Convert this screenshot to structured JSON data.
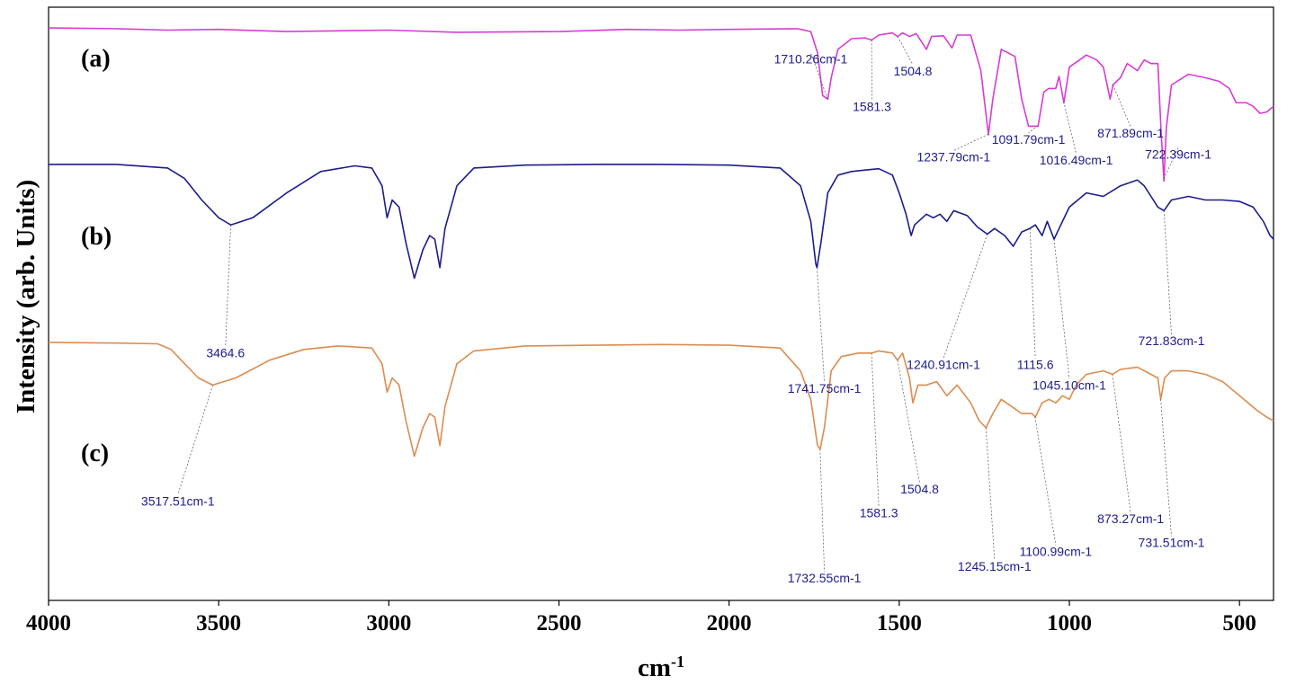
{
  "chart_data": {
    "type": "line",
    "title": "",
    "xlabel": "cm",
    "xlabel_superscript": "-1",
    "ylabel": "Intensity (arb. Units)",
    "xlim": [
      4000,
      400
    ],
    "xticks": [
      4000,
      3500,
      3000,
      2500,
      2000,
      1500,
      1000,
      500
    ],
    "grid": false,
    "series": [
      {
        "name": "(a)",
        "color": "#d63cd6",
        "offset": 0.965,
        "scale": 0.2,
        "points": [
          [
            4000,
            0
          ],
          [
            3800,
            -0.01
          ],
          [
            3650,
            -0.03
          ],
          [
            3500,
            -0.02
          ],
          [
            3300,
            -0.05
          ],
          [
            3150,
            -0.04
          ],
          [
            3000,
            -0.03
          ],
          [
            2800,
            -0.06
          ],
          [
            2500,
            -0.05
          ],
          [
            2300,
            -0.02
          ],
          [
            2150,
            -0.03
          ],
          [
            2000,
            -0.02
          ],
          [
            1800,
            -0.01
          ],
          [
            1760,
            -0.05
          ],
          [
            1740,
            -0.35
          ],
          [
            1725,
            -0.95
          ],
          [
            1710,
            -1.0
          ],
          [
            1700,
            -0.7
          ],
          [
            1680,
            -0.3
          ],
          [
            1640,
            -0.15
          ],
          [
            1600,
            -0.14
          ],
          [
            1581,
            -0.17
          ],
          [
            1560,
            -0.1
          ],
          [
            1520,
            -0.07
          ],
          [
            1505,
            -0.12
          ],
          [
            1490,
            -0.07
          ],
          [
            1470,
            -0.12
          ],
          [
            1450,
            -0.08
          ],
          [
            1420,
            -0.3
          ],
          [
            1405,
            -0.12
          ],
          [
            1370,
            -0.11
          ],
          [
            1345,
            -0.28
          ],
          [
            1330,
            -0.1
          ],
          [
            1290,
            -0.1
          ],
          [
            1260,
            -0.6
          ],
          [
            1238,
            -1.5
          ],
          [
            1225,
            -1.0
          ],
          [
            1200,
            -0.3
          ],
          [
            1180,
            -0.35
          ],
          [
            1160,
            -0.4
          ],
          [
            1140,
            -1.0
          ],
          [
            1120,
            -1.38
          ],
          [
            1092,
            -1.38
          ],
          [
            1075,
            -0.9
          ],
          [
            1060,
            -0.85
          ],
          [
            1040,
            -0.85
          ],
          [
            1030,
            -0.68
          ],
          [
            1016,
            -1.05
          ],
          [
            1000,
            -0.55
          ],
          [
            950,
            -0.38
          ],
          [
            920,
            -0.45
          ],
          [
            900,
            -0.55
          ],
          [
            880,
            -1.0
          ],
          [
            872,
            -0.8
          ],
          [
            850,
            -0.7
          ],
          [
            830,
            -0.5
          ],
          [
            800,
            -0.6
          ],
          [
            780,
            -0.45
          ],
          [
            760,
            -0.5
          ],
          [
            740,
            -0.5
          ],
          [
            730,
            -1.5
          ],
          [
            722,
            -2.15
          ],
          [
            715,
            -1.4
          ],
          [
            700,
            -0.8
          ],
          [
            650,
            -0.65
          ],
          [
            600,
            -0.7
          ],
          [
            560,
            -0.75
          ],
          [
            530,
            -0.85
          ],
          [
            510,
            -1.05
          ],
          [
            480,
            -1.05
          ],
          [
            460,
            -1.1
          ],
          [
            440,
            -1.2
          ],
          [
            420,
            -1.18
          ],
          [
            400,
            -1.1
          ]
        ]
      },
      {
        "name": "(b)",
        "color": "#1c1c8c",
        "offset": 0.735,
        "scale": 0.2,
        "points": [
          [
            4000,
            0
          ],
          [
            3800,
            0
          ],
          [
            3650,
            -0.05
          ],
          [
            3600,
            -0.2
          ],
          [
            3550,
            -0.5
          ],
          [
            3500,
            -0.75
          ],
          [
            3464.6,
            -0.85
          ],
          [
            3400,
            -0.75
          ],
          [
            3300,
            -0.4
          ],
          [
            3200,
            -0.1
          ],
          [
            3100,
            -0.02
          ],
          [
            3050,
            -0.05
          ],
          [
            3020,
            -0.3
          ],
          [
            3005,
            -0.75
          ],
          [
            2990,
            -0.5
          ],
          [
            2970,
            -0.6
          ],
          [
            2950,
            -1.1
          ],
          [
            2925,
            -1.6
          ],
          [
            2900,
            -1.2
          ],
          [
            2880,
            -1.0
          ],
          [
            2865,
            -1.05
          ],
          [
            2850,
            -1.45
          ],
          [
            2835,
            -0.9
          ],
          [
            2800,
            -0.3
          ],
          [
            2750,
            -0.05
          ],
          [
            2600,
            -0.01
          ],
          [
            2400,
            0.0
          ],
          [
            2200,
            0.0
          ],
          [
            2000,
            -0.01
          ],
          [
            1850,
            -0.05
          ],
          [
            1790,
            -0.3
          ],
          [
            1760,
            -0.8
          ],
          [
            1745,
            -1.4
          ],
          [
            1741.75,
            -1.45
          ],
          [
            1730,
            -1.1
          ],
          [
            1710,
            -0.4
          ],
          [
            1680,
            -0.15
          ],
          [
            1640,
            -0.1
          ],
          [
            1600,
            -0.08
          ],
          [
            1560,
            -0.06
          ],
          [
            1520,
            -0.15
          ],
          [
            1500,
            -0.4
          ],
          [
            1480,
            -0.7
          ],
          [
            1465,
            -1.0
          ],
          [
            1455,
            -0.85
          ],
          [
            1420,
            -0.7
          ],
          [
            1400,
            -0.75
          ],
          [
            1380,
            -0.7
          ],
          [
            1360,
            -0.8
          ],
          [
            1340,
            -0.65
          ],
          [
            1300,
            -0.72
          ],
          [
            1270,
            -0.88
          ],
          [
            1241,
            -0.98
          ],
          [
            1220,
            -0.9
          ],
          [
            1190,
            -1.0
          ],
          [
            1165,
            -1.15
          ],
          [
            1140,
            -0.95
          ],
          [
            1116,
            -0.9
          ],
          [
            1100,
            -0.85
          ],
          [
            1080,
            -1.0
          ],
          [
            1065,
            -0.8
          ],
          [
            1045,
            -1.05
          ],
          [
            1030,
            -0.9
          ],
          [
            1000,
            -0.6
          ],
          [
            950,
            -0.4
          ],
          [
            900,
            -0.45
          ],
          [
            850,
            -0.3
          ],
          [
            800,
            -0.22
          ],
          [
            780,
            -0.3
          ],
          [
            760,
            -0.45
          ],
          [
            740,
            -0.6
          ],
          [
            722,
            -0.65
          ],
          [
            700,
            -0.5
          ],
          [
            650,
            -0.45
          ],
          [
            600,
            -0.5
          ],
          [
            550,
            -0.5
          ],
          [
            500,
            -0.52
          ],
          [
            460,
            -0.6
          ],
          [
            430,
            -0.8
          ],
          [
            410,
            -1.0
          ],
          [
            400,
            -1.05
          ]
        ]
      },
      {
        "name": "(c)",
        "color": "#dc8c50",
        "offset": 0.435,
        "scale": 0.2,
        "points": [
          [
            4000,
            0
          ],
          [
            3800,
            -0.01
          ],
          [
            3680,
            -0.02
          ],
          [
            3640,
            -0.1
          ],
          [
            3600,
            -0.3
          ],
          [
            3560,
            -0.5
          ],
          [
            3517.51,
            -0.6
          ],
          [
            3450,
            -0.5
          ],
          [
            3350,
            -0.25
          ],
          [
            3250,
            -0.1
          ],
          [
            3150,
            -0.05
          ],
          [
            3050,
            -0.08
          ],
          [
            3020,
            -0.3
          ],
          [
            3005,
            -0.7
          ],
          [
            2990,
            -0.5
          ],
          [
            2970,
            -0.6
          ],
          [
            2950,
            -1.1
          ],
          [
            2925,
            -1.6
          ],
          [
            2900,
            -1.2
          ],
          [
            2880,
            -1.0
          ],
          [
            2865,
            -1.05
          ],
          [
            2850,
            -1.45
          ],
          [
            2835,
            -0.9
          ],
          [
            2800,
            -0.3
          ],
          [
            2750,
            -0.12
          ],
          [
            2600,
            -0.05
          ],
          [
            2400,
            -0.04
          ],
          [
            2200,
            -0.03
          ],
          [
            2000,
            -0.04
          ],
          [
            1850,
            -0.08
          ],
          [
            1790,
            -0.4
          ],
          [
            1760,
            -0.8
          ],
          [
            1740,
            -1.45
          ],
          [
            1732.55,
            -1.5
          ],
          [
            1720,
            -1.2
          ],
          [
            1700,
            -0.4
          ],
          [
            1670,
            -0.2
          ],
          [
            1620,
            -0.15
          ],
          [
            1581,
            -0.15
          ],
          [
            1560,
            -0.12
          ],
          [
            1520,
            -0.15
          ],
          [
            1505,
            -0.25
          ],
          [
            1490,
            -0.15
          ],
          [
            1470,
            -0.5
          ],
          [
            1460,
            -0.85
          ],
          [
            1445,
            -0.6
          ],
          [
            1420,
            -0.6
          ],
          [
            1390,
            -0.55
          ],
          [
            1360,
            -0.75
          ],
          [
            1330,
            -0.6
          ],
          [
            1290,
            -0.85
          ],
          [
            1265,
            -1.1
          ],
          [
            1245,
            -1.2
          ],
          [
            1225,
            -1.0
          ],
          [
            1200,
            -0.8
          ],
          [
            1170,
            -0.9
          ],
          [
            1140,
            -1.0
          ],
          [
            1110,
            -1.0
          ],
          [
            1100,
            -1.05
          ],
          [
            1080,
            -0.85
          ],
          [
            1060,
            -0.8
          ],
          [
            1040,
            -0.85
          ],
          [
            1020,
            -0.75
          ],
          [
            1000,
            -0.8
          ],
          [
            980,
            -0.6
          ],
          [
            950,
            -0.45
          ],
          [
            900,
            -0.4
          ],
          [
            873,
            -0.45
          ],
          [
            850,
            -0.38
          ],
          [
            800,
            -0.35
          ],
          [
            760,
            -0.45
          ],
          [
            740,
            -0.5
          ],
          [
            731.5,
            -0.8
          ],
          [
            720,
            -0.5
          ],
          [
            700,
            -0.4
          ],
          [
            650,
            -0.4
          ],
          [
            600,
            -0.45
          ],
          [
            550,
            -0.55
          ],
          [
            500,
            -0.75
          ],
          [
            450,
            -0.95
          ],
          [
            420,
            -1.05
          ],
          [
            400,
            -1.1
          ]
        ]
      }
    ],
    "panel_labels": [
      "(a)",
      "(b)",
      "(c)"
    ],
    "annotations": [
      {
        "series": 0,
        "peak": 1710.26,
        "text": "1710.26cm-1",
        "lx": 1760,
        "ly": 0.905
      },
      {
        "series": 0,
        "peak": 1581.3,
        "text": "1581.3",
        "lx": 1580,
        "ly": 0.825
      },
      {
        "series": 0,
        "peak": 1504.8,
        "text": "1504.8",
        "lx": 1460,
        "ly": 0.885
      },
      {
        "series": 0,
        "peak": 1237.79,
        "text": "1237.79cm-1",
        "lx": 1340,
        "ly": 0.74
      },
      {
        "series": 0,
        "peak": 1091.79,
        "text": "1091.79cm-1",
        "lx": 1120,
        "ly": 0.77
      },
      {
        "series": 0,
        "peak": 1016.49,
        "text": "1016.49cm-1",
        "lx": 980,
        "ly": 0.735
      },
      {
        "series": 0,
        "peak": 871.89,
        "text": "871.89cm-1",
        "lx": 820,
        "ly": 0.78
      },
      {
        "series": 0,
        "peak": 722.39,
        "text": "722.39cm-1",
        "lx": 680,
        "ly": 0.745
      },
      {
        "series": 1,
        "peak": 3464.6,
        "text": "3464.6",
        "lx": 3480,
        "ly": 0.41
      },
      {
        "series": 1,
        "peak": 1741.75,
        "text": "1741.75cm-1",
        "lx": 1720,
        "ly": 0.35
      },
      {
        "series": 1,
        "peak": 1240.91,
        "text": "1240.91cm-1",
        "lx": 1370,
        "ly": 0.39
      },
      {
        "series": 1,
        "peak": 1115.6,
        "text": "1115.6",
        "lx": 1100,
        "ly": 0.39
      },
      {
        "series": 1,
        "peak": 1045.1,
        "text": "1045.10cm-1",
        "lx": 1000,
        "ly": 0.355
      },
      {
        "series": 1,
        "peak": 721.83,
        "text": "721.83cm-1",
        "lx": 700,
        "ly": 0.43
      },
      {
        "series": 2,
        "peak": 3517.51,
        "text": "3517.51cm-1",
        "lx": 3620,
        "ly": 0.16
      },
      {
        "series": 2,
        "peak": 1581.3,
        "text": "1581.3",
        "lx": 1560,
        "ly": 0.14
      },
      {
        "series": 2,
        "peak": 1504.8,
        "text": "1504.8",
        "lx": 1440,
        "ly": 0.18
      },
      {
        "series": 2,
        "peak": 1732.55,
        "text": "1732.55cm-1",
        "lx": 1720,
        "ly": 0.03
      },
      {
        "series": 2,
        "peak": 1245.15,
        "text": "1245.15cm-1",
        "lx": 1220,
        "ly": 0.05
      },
      {
        "series": 2,
        "peak": 1100.99,
        "text": "1100.99cm-1",
        "lx": 1040,
        "ly": 0.075
      },
      {
        "series": 2,
        "peak": 873.27,
        "text": "873.27cm-1",
        "lx": 820,
        "ly": 0.13
      },
      {
        "series": 2,
        "peak": 731.51,
        "text": "731.51cm-1",
        "lx": 700,
        "ly": 0.09
      }
    ]
  }
}
